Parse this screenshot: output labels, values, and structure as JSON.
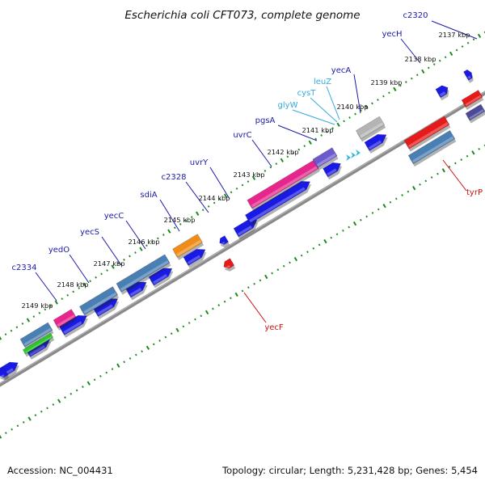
{
  "title": "Escherichia coli CFT073, complete genome",
  "footer": {
    "accession": "Accession: NC_004431",
    "summary": "Topology: circular; Length: 5,231,428 bp; Genes: 5,454"
  },
  "colors": {
    "forward_cds": "#1a1ae6",
    "steel_blue": "#4a7fb4",
    "pink": "#e6268c",
    "violet": "#6a5acd",
    "gray": "#b4b4b4",
    "orange": "#f08c1a",
    "green": "#2ec82e",
    "red": "#e61a1a",
    "cyan_trna": "#33b5e5",
    "label_blue": "#1a1aa8",
    "label_cyan": "#33aadd",
    "label_red": "#cc1111",
    "backbone": "#8a8a8a",
    "dots": "#1a8a1a"
  },
  "ticks": [
    {
      "label": "2137 kbp"
    },
    {
      "label": "2138 kbp"
    },
    {
      "label": "2139 kbp"
    },
    {
      "label": "2140 kbp"
    },
    {
      "label": "2141 kbp"
    },
    {
      "label": "2142 kbp"
    },
    {
      "label": "2143 kbp"
    },
    {
      "label": "2144 kbp"
    },
    {
      "label": "2145 kbp"
    },
    {
      "label": "2146 kbp"
    },
    {
      "label": "2147 kbp"
    },
    {
      "label": "2148 kbp"
    },
    {
      "label": "2149 kbp"
    }
  ],
  "gene_labels": [
    {
      "name": "c2320",
      "kind": "blue"
    },
    {
      "name": "yecH",
      "kind": "blue"
    },
    {
      "name": "yecA",
      "kind": "blue"
    },
    {
      "name": "leuZ",
      "kind": "cyan"
    },
    {
      "name": "cysT",
      "kind": "cyan"
    },
    {
      "name": "glyW",
      "kind": "cyan"
    },
    {
      "name": "pgsA",
      "kind": "blue"
    },
    {
      "name": "uvrC",
      "kind": "blue"
    },
    {
      "name": "uvrY",
      "kind": "blue"
    },
    {
      "name": "c2328",
      "kind": "blue"
    },
    {
      "name": "sdiA",
      "kind": "blue"
    },
    {
      "name": "yecC",
      "kind": "blue"
    },
    {
      "name": "yecS",
      "kind": "blue"
    },
    {
      "name": "yedO",
      "kind": "blue"
    },
    {
      "name": "c2334",
      "kind": "blue"
    },
    {
      "name": "yecF",
      "kind": "red"
    },
    {
      "name": "tyrP",
      "kind": "red"
    }
  ]
}
